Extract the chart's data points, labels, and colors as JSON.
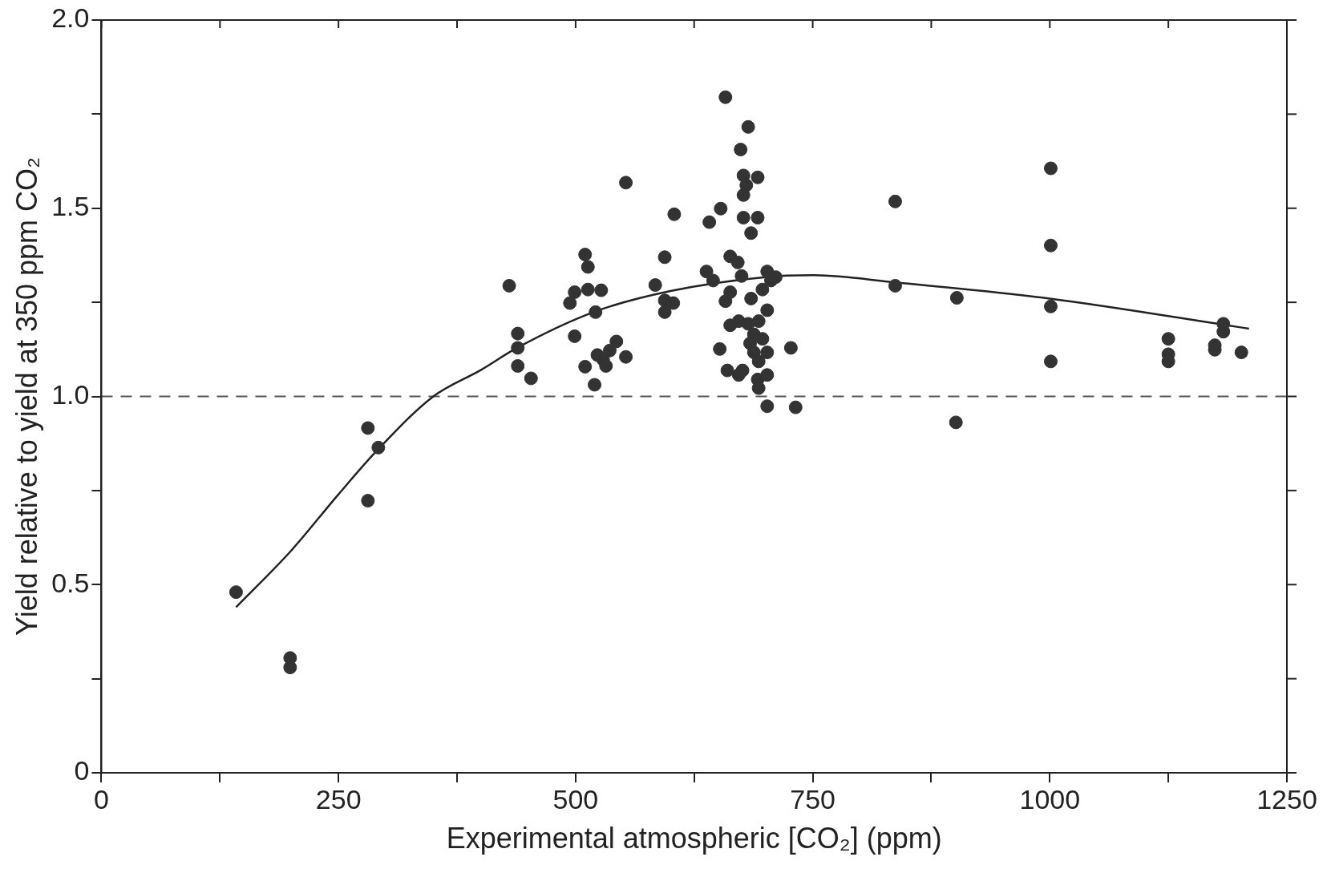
{
  "chart_data": {
    "type": "scatter",
    "xlabel": "Experimental atmospheric [CO₂] (ppm)",
    "ylabel": "Yield relative to yield at 350 ppm CO₂",
    "xlim": [
      0,
      1250
    ],
    "xticks": [
      0,
      {
        "value": 125,
        "label": null
      },
      250,
      {
        "value": 375,
        "label": null
      },
      500,
      {
        "value": 625,
        "label": null
      },
      750,
      {
        "value": 875,
        "label": null
      },
      1000,
      {
        "value": 1125,
        "label": null
      },
      1250
    ],
    "ylim": [
      0,
      2
    ],
    "yticks": [
      0,
      {
        "value": 0.25,
        "label": null
      },
      0.5,
      {
        "value": 0.75,
        "label": null
      },
      {
        "value": 1,
        "label": "1.0"
      },
      {
        "value": 1.25,
        "label": null
      },
      1.5,
      {
        "value": 1.75,
        "label": null
      },
      {
        "value": 2,
        "label": "2.0"
      }
    ],
    "grid": false,
    "legend": false,
    "marker": "circle",
    "ref_lines": [
      {
        "axis": "y",
        "value": 1,
        "color": "#555555",
        "line_style": "dashed"
      }
    ],
    "series": [
      {
        "color": "#333333",
        "x": [
          142,
          199,
          199,
          281,
          292,
          281,
          430,
          439,
          439,
          439,
          453,
          494,
          499,
          510,
          513,
          513,
          527,
          521,
          499,
          510,
          520,
          523,
          529,
          532,
          536,
          543,
          553,
          553,
          584,
          594,
          594,
          594,
          603,
          604,
          658,
          674,
          682,
          677,
          680,
          677,
          692,
          653,
          641,
          677,
          692,
          685,
          638,
          645,
          663,
          671,
          675,
          702,
          706,
          697,
          711,
          658,
          663,
          685,
          672,
          663,
          702,
          682,
          693,
          688,
          697,
          684,
          688,
          693,
          702,
          652,
          660,
          672,
          676,
          692,
          693,
          702,
          702,
          727,
          732,
          837,
          837,
          902,
          901,
          1001,
          1001,
          1001,
          1001,
          1125,
          1125,
          1125,
          1183,
          1183,
          1174,
          1174,
          1202
        ],
        "values": [
          0.48,
          0.305,
          0.28,
          0.916,
          0.864,
          0.723,
          1.294,
          1.167,
          1.129,
          1.081,
          1.048,
          1.248,
          1.277,
          1.377,
          1.344,
          1.284,
          1.282,
          1.224,
          1.16,
          1.079,
          1.031,
          1.11,
          1.098,
          1.081,
          1.122,
          1.146,
          1.105,
          1.568,
          1.296,
          1.37,
          1.255,
          1.224,
          1.248,
          1.484,
          1.795,
          1.656,
          1.716,
          1.587,
          1.561,
          1.535,
          1.582,
          1.499,
          1.463,
          1.475,
          1.475,
          1.434,
          1.332,
          1.308,
          1.372,
          1.356,
          1.32,
          1.332,
          1.308,
          1.284,
          1.317,
          1.253,
          1.277,
          1.26,
          1.2,
          1.189,
          1.229,
          1.193,
          1.2,
          1.165,
          1.153,
          1.141,
          1.117,
          1.093,
          1.117,
          1.126,
          1.069,
          1.057,
          1.069,
          1.045,
          1.022,
          1.057,
          0.974,
          1.129,
          0.971,
          1.518,
          1.294,
          1.262,
          0.931,
          1.606,
          1.401,
          1.239,
          1.093,
          1.153,
          1.112,
          1.093,
          1.193,
          1.172,
          1.136,
          1.124,
          1.117
        ]
      },
      {
        "type": "line",
        "color": "#222222",
        "marker": "none",
        "x": [
          142,
          200,
          250,
          292,
          350,
          400,
          439,
          520,
          600,
          700,
          750,
          837,
          1000,
          1210
        ],
        "values": [
          0.44,
          0.59,
          0.74,
          0.86,
          1.0,
          1.07,
          1.13,
          1.225,
          1.28,
          1.317,
          1.322,
          1.303,
          1.26,
          1.18
        ]
      }
    ]
  }
}
